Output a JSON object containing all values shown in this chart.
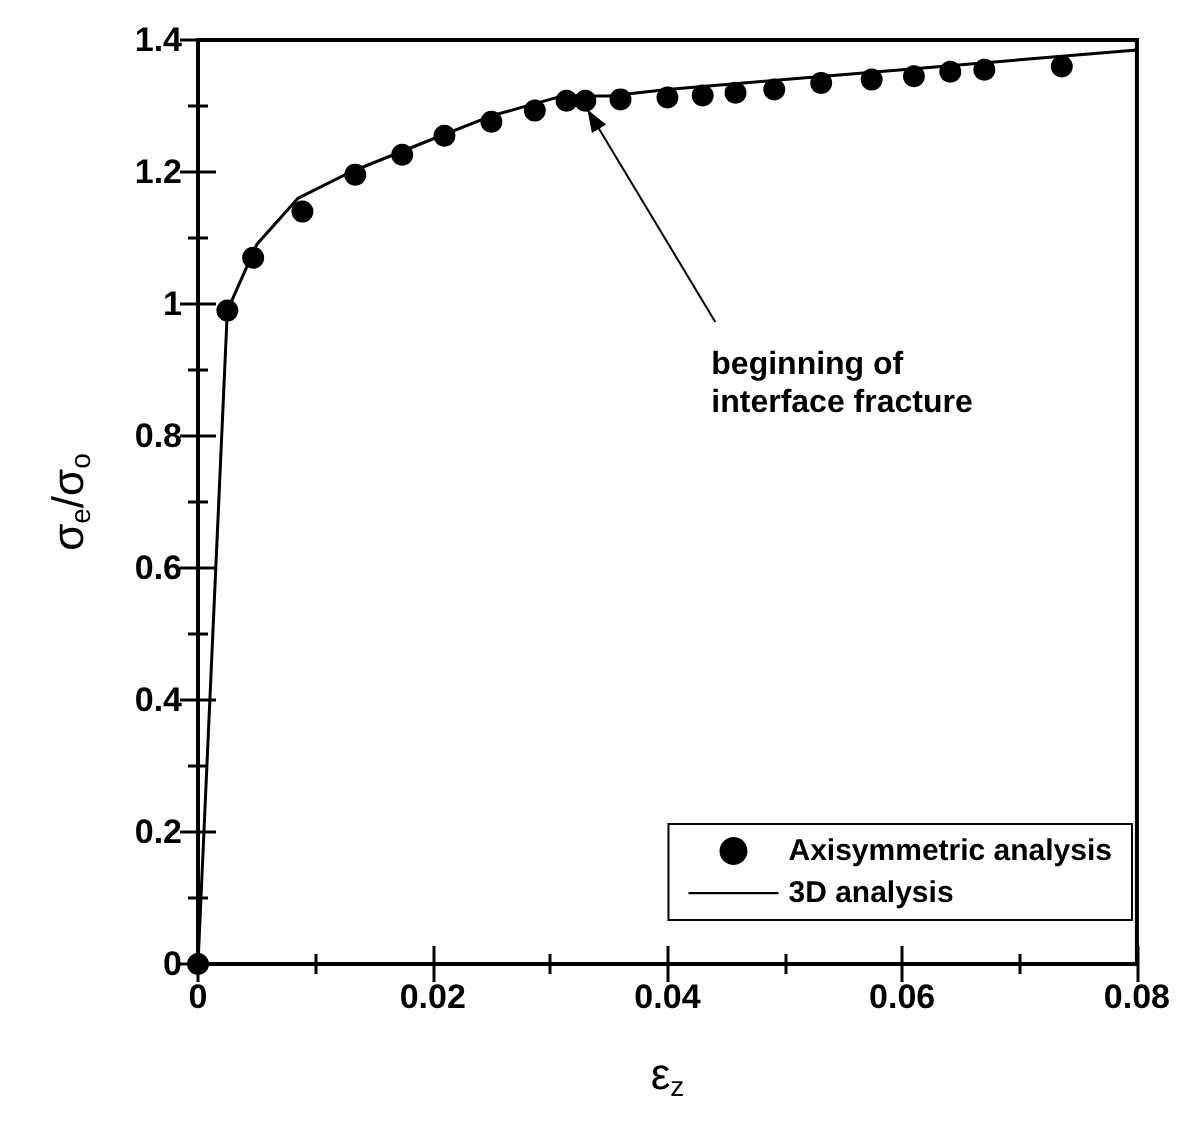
{
  "chart_data": {
    "type": "scatter",
    "xlabel": "ε$_{z}$",
    "ylabel": "σ$_{e}$/σ$_{o}$",
    "xlim": [
      0,
      0.08
    ],
    "xticks": [
      0,
      0.02,
      0.04,
      0.06,
      0.08
    ],
    "ylim": [
      0,
      1.4
    ],
    "yticks": [
      0,
      0.2,
      0.4,
      0.6,
      0.8,
      1,
      1.2,
      1.4
    ],
    "grid": false,
    "legend": "bottom right",
    "marker": "circle",
    "annotations": [
      {
        "text": "beginning of\ninterface fracture",
        "x": 0.033,
        "y": 1.3
      }
    ],
    "series": [
      {
        "name": "Axisymmetric analysis",
        "color": "#000000",
        "x": [
          0,
          0.0025,
          0.0047,
          0.0089,
          0.0134,
          0.0174,
          0.021,
          0.025,
          0.0287,
          0.0314,
          0.033,
          0.036,
          0.04,
          0.043,
          0.0458,
          0.0491,
          0.0531,
          0.0574,
          0.061,
          0.0641,
          0.067,
          0.0736
        ],
        "values": [
          0,
          0.99,
          1.07,
          1.14,
          1.196,
          1.226,
          1.255,
          1.276,
          1.293,
          1.308,
          1.308,
          1.31,
          1.313,
          1.316,
          1.32,
          1.325,
          1.335,
          1.34,
          1.345,
          1.352,
          1.355,
          1.36
        ]
      },
      {
        "name": "3D analysis",
        "type": "line",
        "color": "#000000",
        "marker": "none",
        "line_style": "solid",
        "x": [
          0,
          0.0025,
          0.005,
          0.0085,
          0.013,
          0.02,
          0.025,
          0.03,
          0.031,
          0.035,
          0.04,
          0.05,
          0.06,
          0.07,
          0.08
        ],
        "values": [
          0,
          0.99,
          1.09,
          1.16,
          1.2,
          1.25,
          1.285,
          1.31,
          1.315,
          1.315,
          1.325,
          1.34,
          1.355,
          1.37,
          1.385
        ]
      }
    ]
  }
}
